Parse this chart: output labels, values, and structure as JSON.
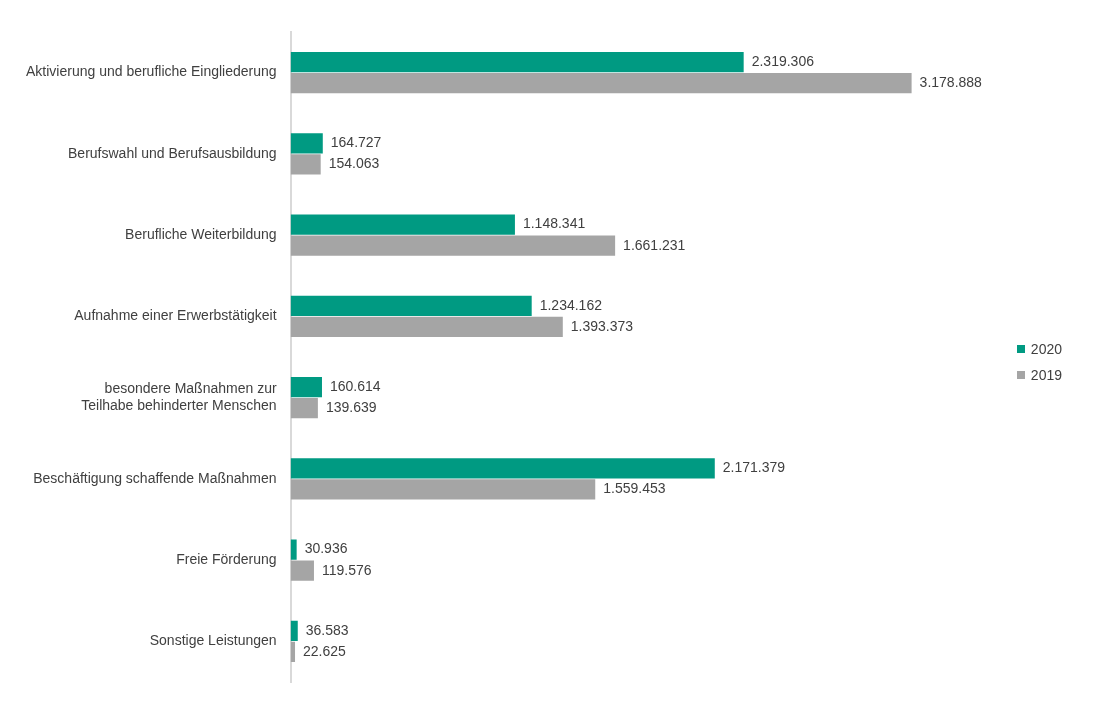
{
  "chart_data": {
    "type": "bar",
    "orientation": "horizontal",
    "categories": [
      "Aktivierung und berufliche Eingliederung",
      "Berufswahl und Berufsausbildung",
      "Berufliche Weiterbildung",
      "Aufnahme einer Erwerbstätigkeit",
      "besondere Maßnahmen zur Teilhabe behinderter Menschen",
      "Beschäftigung schaffende Maßnahmen",
      "Freie Förderung",
      "Sonstige Leistungen"
    ],
    "series": [
      {
        "name": "2020",
        "color": "#009a82",
        "values": [
          2319306,
          164727,
          1148341,
          1234162,
          160614,
          2171379,
          30936,
          36583
        ],
        "value_labels": [
          "2.319.306",
          "164.727",
          "1.148.341",
          "1.234.162",
          "160.614",
          "2.171.379",
          "30.936",
          "36.583"
        ]
      },
      {
        "name": "2019",
        "color": "#a5a5a5",
        "values": [
          3178888,
          154063,
          1661231,
          1393373,
          139639,
          1559453,
          119576,
          22625
        ],
        "value_labels": [
          "3.178.888",
          "154.063",
          "1.661.231",
          "1.393.373",
          "139.639",
          "1.559.453",
          "119.576",
          "22.625"
        ]
      }
    ],
    "legend": "right",
    "grid": false,
    "tick_labels": "y"
  }
}
